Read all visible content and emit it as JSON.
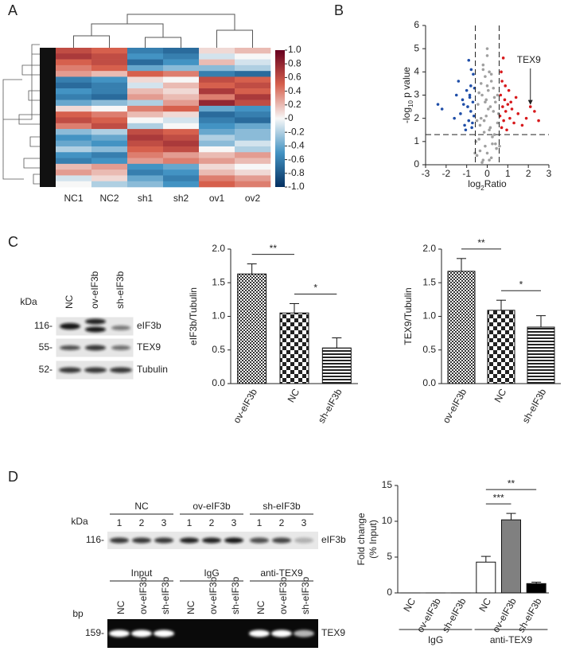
{
  "panel_labels": [
    "A",
    "B",
    "C",
    "D"
  ],
  "chart_data": [
    {
      "type": "heatmap",
      "x": [
        "NC1",
        "NC2",
        "sh1",
        "sh2",
        "ov1",
        "ov2"
      ],
      "values": [
        [
          0.6,
          0.5,
          -0.6,
          -0.7,
          0.1,
          0.2
        ],
        [
          0.7,
          0.6,
          -0.5,
          -0.6,
          -0.1,
          0.0
        ],
        [
          0.5,
          0.6,
          -0.7,
          -0.5,
          0.2,
          -0.1
        ],
        [
          0.4,
          0.5,
          -0.4,
          -0.3,
          -0.3,
          -0.2
        ],
        [
          0.3,
          0.2,
          0.5,
          0.4,
          -0.6,
          -0.7
        ],
        [
          -0.6,
          -0.5,
          0.1,
          0.0,
          0.6,
          0.5
        ],
        [
          -0.7,
          -0.6,
          -0.1,
          0.2,
          0.5,
          0.6
        ],
        [
          -0.5,
          -0.6,
          0.2,
          0.1,
          0.7,
          0.5
        ],
        [
          -0.6,
          -0.7,
          0.3,
          0.2,
          0.4,
          0.7
        ],
        [
          -0.4,
          -0.3,
          -0.2,
          0.3,
          0.8,
          0.6
        ],
        [
          0.1,
          0.0,
          0.4,
          0.5,
          -0.4,
          -0.5
        ],
        [
          0.5,
          0.4,
          0.2,
          0.1,
          -0.7,
          -0.6
        ],
        [
          0.6,
          0.5,
          0.0,
          -0.1,
          -0.6,
          -0.7
        ],
        [
          0.4,
          0.6,
          -0.2,
          0.0,
          -0.5,
          -0.4
        ],
        [
          -0.3,
          -0.2,
          0.6,
          0.5,
          -0.4,
          -0.3
        ],
        [
          -0.5,
          -0.4,
          0.7,
          0.6,
          -0.2,
          -0.3
        ],
        [
          -0.4,
          -0.5,
          0.6,
          0.7,
          -0.3,
          -0.1
        ],
        [
          -0.2,
          -0.3,
          0.5,
          0.6,
          0.0,
          -0.2
        ],
        [
          -0.5,
          -0.6,
          0.4,
          0.3,
          0.2,
          0.3
        ],
        [
          -0.6,
          -0.5,
          0.3,
          0.4,
          0.3,
          0.2
        ],
        [
          0.2,
          0.3,
          -0.5,
          -0.4,
          0.1,
          0.0
        ],
        [
          0.3,
          0.2,
          -0.6,
          -0.5,
          0.2,
          0.1
        ],
        [
          -0.1,
          0.1,
          -0.4,
          -0.6,
          0.4,
          0.3
        ],
        [
          0.0,
          -0.2,
          -0.3,
          -0.5,
          0.5,
          0.4
        ]
      ],
      "zlim": [
        -1,
        1
      ],
      "zticks": [
        {
          "value": 1,
          "label": "1.0"
        },
        0.8,
        0.6,
        0.4,
        0.2,
        0,
        -0.2,
        -0.4,
        -0.6,
        -0.8,
        {
          "value": -1,
          "label": "-1.0"
        }
      ]
    },
    {
      "type": "scatter",
      "xlabel": [
        "log",
        "2",
        "Ratio"
      ],
      "ylabel": [
        "-log",
        "10",
        " p value"
      ],
      "xlim": [
        -3,
        3
      ],
      "xticks": [
        -3,
        -2,
        -1,
        0,
        1,
        2,
        3
      ],
      "ylim": [
        0,
        6
      ],
      "yticks": [
        0,
        1,
        2,
        3,
        4,
        5,
        6
      ],
      "vlines": [
        -0.58,
        0.58
      ],
      "hline": 1.3,
      "series": [
        {
          "color": "#a0a0a0",
          "x": [
            -0.5,
            -0.4,
            -0.3,
            -0.2,
            -0.1,
            0,
            0.1,
            0.2,
            0.3,
            0.4,
            0.5,
            -0.45,
            -0.35,
            -0.25,
            -0.15,
            -0.05,
            0.05,
            0.15,
            0.25,
            0.35,
            0.45,
            -0.55,
            -0.3,
            -0.1,
            0.1,
            0.3,
            0.55,
            -0.2,
            0,
            0.2,
            -0.4,
            0.4,
            -0.15,
            0.15,
            -0.05,
            0.05,
            -0.6,
            0.6,
            -0.25,
            0.25,
            -0.35,
            0.35,
            0,
            -0.1,
            0.1,
            -0.5,
            0.5,
            -0.2,
            0.2,
            0
          ],
          "values": [
            0.4,
            1.1,
            2.0,
            0.2,
            0.8,
            0.5,
            1.5,
            0.3,
            2.3,
            0.9,
            1.8,
            2.6,
            0.6,
            3.0,
            1.9,
            2.8,
            3.2,
            2.5,
            1.2,
            2.9,
            0.7,
            1.0,
            3.5,
            3.8,
            4.0,
            3.3,
            2.2,
            4.3,
            4.7,
            3.6,
            3.1,
            2.7,
            1.4,
            1.6,
            2.1,
            2.4,
            0.5,
            0.8,
            0.1,
            0.9,
            1.7,
            1.3,
            3.4,
            2.7,
            0.2,
            1.9,
            3.0,
            4.1,
            3.9,
            5.0
          ]
        },
        {
          "color": "#1f4ea8",
          "x": [
            -2.4,
            -2.2,
            -1.6,
            -1.4,
            -1.3,
            -1.2,
            -1.1,
            -1.0,
            -0.95,
            -0.9,
            -0.85,
            -0.8,
            -0.75,
            -0.7,
            -0.68,
            -0.65,
            -1.05,
            -0.9,
            -0.8,
            -1.5,
            -0.72,
            -0.85,
            -0.62,
            -1.15,
            -0.78
          ],
          "values": [
            2.6,
            2.4,
            2.0,
            3.6,
            2.2,
            2.8,
            1.7,
            3.2,
            2.5,
            1.9,
            3.0,
            2.3,
            1.6,
            2.7,
            3.9,
            2.1,
            1.5,
            4.5,
            3.4,
            3.0,
            1.8,
            2.9,
            3.3,
            2.6,
            4.1
          ]
        },
        {
          "color": "#d7191c",
          "x": [
            0.62,
            0.65,
            0.7,
            0.72,
            0.75,
            0.8,
            0.85,
            0.9,
            0.95,
            1.0,
            1.05,
            1.1,
            1.2,
            1.3,
            1.4,
            1.5,
            1.7,
            1.9,
            2.1,
            2.3,
            2.5,
            0.68,
            0.88,
            1.15,
            0.78
          ],
          "values": [
            2.1,
            3.0,
            1.6,
            3.6,
            2.5,
            1.9,
            2.8,
            2.3,
            1.5,
            2.6,
            3.2,
            2.0,
            2.4,
            1.8,
            2.9,
            2.2,
            1.7,
            2.0,
            2.5,
            2.3,
            1.9,
            4.0,
            3.4,
            2.7,
            4.6
          ]
        }
      ],
      "annotation": {
        "text": "TEX9",
        "x": 2.1,
        "y": 2.5
      }
    },
    {
      "type": "bar",
      "ylabel": [
        "eIF3b/Tubulin"
      ],
      "categories": [
        "ov-eIF3b",
        "NC",
        "sh-eIF3b"
      ],
      "values": [
        1.63,
        1.05,
        0.53
      ],
      "errors": [
        0.15,
        0.14,
        0.15
      ],
      "patterns": [
        "checker-small",
        "checker-large",
        "stripes"
      ],
      "ylim": [
        0,
        2
      ],
      "yticks": [
        {
          "value": 0,
          "label": "0.0"
        },
        0.5,
        {
          "value": 1,
          "label": "1.0"
        },
        1.5,
        {
          "value": 2,
          "label": "2.0"
        }
      ],
      "annotations": [
        {
          "text": "**",
          "from": 0,
          "to": 1
        },
        {
          "text": "*",
          "from": 1,
          "to": 2
        }
      ]
    },
    {
      "type": "bar",
      "ylabel": [
        "TEX9/Tubulin"
      ],
      "categories": [
        "ov-eIF3b",
        "NC",
        "sh-eIF3b"
      ],
      "values": [
        1.67,
        1.09,
        0.84
      ],
      "errors": [
        0.19,
        0.15,
        0.17
      ],
      "patterns": [
        "checker-small",
        "checker-large",
        "stripes"
      ],
      "ylim": [
        0,
        2
      ],
      "yticks": [
        {
          "value": 0,
          "label": "0.0"
        },
        0.5,
        {
          "value": 1,
          "label": "1.0"
        },
        1.5,
        {
          "value": 2,
          "label": "2.0"
        }
      ],
      "annotations": [
        {
          "text": "**",
          "from": 0,
          "to": 1
        },
        {
          "text": "*",
          "from": 1,
          "to": 2
        }
      ]
    },
    {
      "type": "bar",
      "ylabel": [
        "Fold change",
        "(% Input)"
      ],
      "categories": [
        "NC",
        "ov-eIF3b",
        "sh-eIF3b",
        "NC",
        "ov-eIF3b",
        "sh-eIF3b"
      ],
      "values": [
        0,
        0,
        0,
        4.3,
        10.2,
        1.3
      ],
      "errors": [
        0,
        0,
        0,
        0.8,
        0.9,
        0.2
      ],
      "colors": [
        "#ffffff",
        "#808080",
        "#000000",
        "#ffffff",
        "#808080",
        "#000000"
      ],
      "ylim": [
        0,
        15
      ],
      "yticks": [
        0,
        5,
        10,
        15
      ],
      "groups": [
        {
          "label": "IgG",
          "from": 0,
          "to": 2
        },
        {
          "label": "anti-TEX9",
          "from": 3,
          "to": 5
        }
      ],
      "annotations": [
        {
          "text": "***",
          "from": 3,
          "to": 4
        },
        {
          "text": "**",
          "from": 3,
          "to": 5
        }
      ]
    }
  ],
  "blot_c": {
    "unit": "kDa",
    "lanes": [
      "NC",
      "ov-eIF3b",
      "sh-eIF3b"
    ],
    "markers": [
      "116-",
      "55-",
      "52-"
    ],
    "proteins": [
      "eIF3b",
      "TEX9",
      "Tubulin"
    ]
  },
  "blot_d": {
    "unit": "kDa",
    "groups": [
      "NC",
      "ov-eIF3b",
      "sh-eIF3b"
    ],
    "lanes": [
      "1",
      "2",
      "3"
    ],
    "marker": "116-",
    "protein": "eIF3b"
  },
  "gel_d": {
    "unit": "bp",
    "groups": [
      "Input",
      "IgG",
      "anti-TEX9"
    ],
    "lanes": [
      "NC",
      "ov-eIF3b",
      "sh-eIF3b"
    ],
    "marker": "159-",
    "product": "TEX9"
  }
}
